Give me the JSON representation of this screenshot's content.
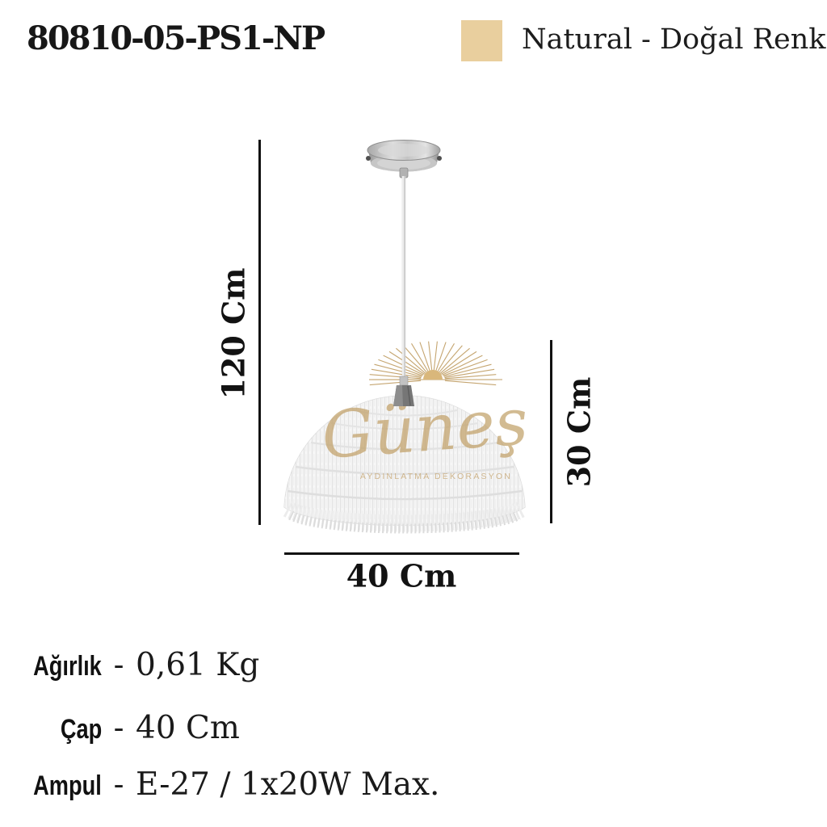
{
  "product": {
    "code": "80810-05-PS1-NP",
    "color": {
      "name": "Natural - Doğal Renk",
      "hex": "#e9cf9e"
    }
  },
  "diagram": {
    "total_height_label": "120 Cm",
    "shade_height_label": "30 Cm",
    "diameter_label": "40 Cm"
  },
  "specs": [
    {
      "label": "Ağırlık",
      "separator": "-",
      "value": "0,61 Kg"
    },
    {
      "label": "Çap",
      "separator": "-",
      "value": "40 Cm"
    },
    {
      "label": "Ampul",
      "separator": "-",
      "value": "E-27 / 1x20W Max."
    }
  ],
  "watermark": {
    "brand": "Güneş",
    "tagline": "AYDINLATMA DEKORASYON",
    "gold": "#c2a169",
    "sun_fill": "#d9b77b"
  }
}
